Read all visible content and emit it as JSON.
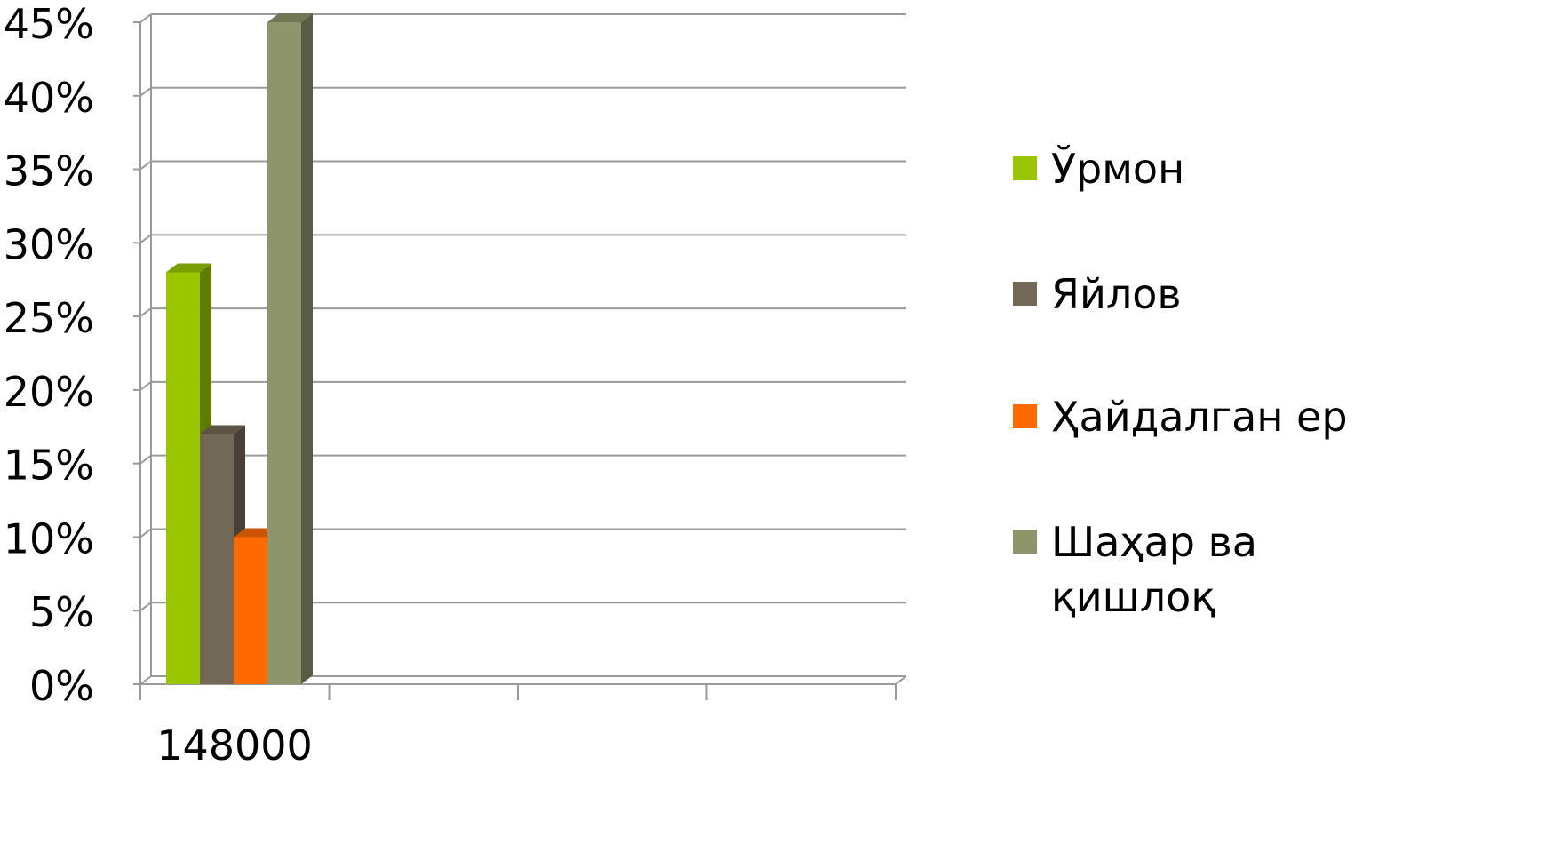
{
  "chart_data": {
    "type": "bar",
    "three_d": true,
    "categories": [
      "148000"
    ],
    "series": [
      {
        "name": "Ўрмон",
        "values": [
          28
        ],
        "color": "#99c600"
      },
      {
        "name": "Яйлов",
        "values": [
          17
        ],
        "color": "#736857"
      },
      {
        "name": "Ҳайдалган ер",
        "values": [
          10
        ],
        "color": "#ff6a00"
      },
      {
        "name": "Шаҳар ва қишлоқ",
        "values": [
          45
        ],
        "color": "#8f956a"
      }
    ],
    "title": "",
    "xlabel": "",
    "ylabel": "",
    "ylim": [
      0,
      45
    ],
    "yticks": [
      "0%",
      "5%",
      "10%",
      "15%",
      "20%",
      "25%",
      "30%",
      "35%",
      "40%",
      "45%"
    ],
    "grid": true,
    "legend_position": "right"
  }
}
